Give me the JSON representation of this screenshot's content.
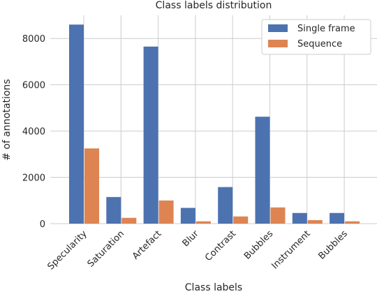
{
  "chart_data": {
    "type": "bar",
    "title": "Class labels distribution",
    "xlabel": "Class labels",
    "ylabel": "# of annotations",
    "categories": [
      "Specularity",
      "Saturation",
      "Artefact",
      "Blur",
      "Contrast",
      "Bubbles",
      "Instrument",
      "Bubbles"
    ],
    "series": [
      {
        "name": "Single frame",
        "color": "#4c72b0",
        "values": [
          8600,
          1150,
          7650,
          680,
          1580,
          4620,
          460,
          460
        ]
      },
      {
        "name": "Sequence",
        "color": "#dd8452",
        "values": [
          3250,
          250,
          1000,
          100,
          310,
          700,
          150,
          100
        ]
      }
    ],
    "ylim": [
      0,
      9000
    ],
    "yticks": [
      0,
      2000,
      4000,
      6000,
      8000
    ],
    "grid": true,
    "legend_position": "top-right"
  }
}
